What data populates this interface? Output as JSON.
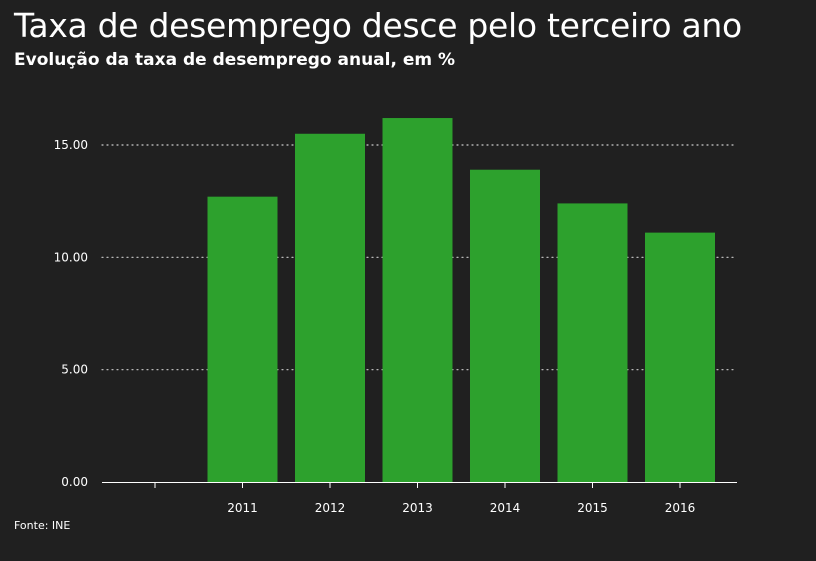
{
  "title": "Taxa de desemprego desce pelo terceiro ano",
  "subtitle": "Evolução da taxa de desemprego anual, em %",
  "source": "Fonte: INE",
  "colors": {
    "background": "#202020",
    "bar": "#2da12d",
    "text": "#ffffff",
    "grid": "#cccccc"
  },
  "chart_data": {
    "type": "bar",
    "categories": [
      "",
      "2011",
      "2012",
      "2013",
      "2014",
      "2015",
      "2016"
    ],
    "values": [
      null,
      12.7,
      15.5,
      16.2,
      13.9,
      12.4,
      11.1
    ],
    "ylim": [
      0,
      18
    ],
    "yticks": [
      0,
      5,
      10,
      15
    ],
    "ytick_labels": [
      "0.00",
      "5.00",
      "10.00",
      "15.00"
    ],
    "grid": true,
    "legend": "none"
  }
}
